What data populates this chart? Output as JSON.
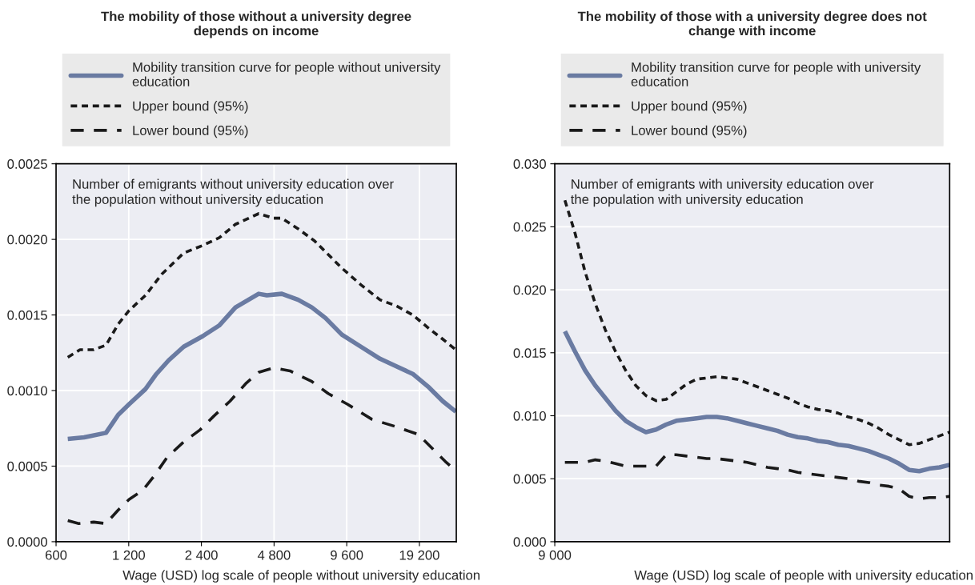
{
  "chart_data": [
    {
      "type": "line",
      "title": "The mobility of those without a university degree\ndepends on income",
      "xlabel": "Wage (USD) log scale of people without university education",
      "log": "x",
      "grid": true,
      "legend": "top",
      "annotations": [
        "Number of emigrants without university education over\nthe population without university education"
      ],
      "xlim": [
        600,
        27300
      ],
      "xticks": [
        600,
        {
          "value": 1200,
          "label": "1 200"
        },
        {
          "value": 2400,
          "label": "2 400"
        },
        {
          "value": 4800,
          "label": "4 800"
        },
        {
          "value": 9600,
          "label": "9 600"
        },
        {
          "value": 19200,
          "label": "19 200"
        }
      ],
      "ylim": [
        0,
        0.0025
      ],
      "yticks": [
        {
          "value": 0,
          "label": "0.0000"
        },
        {
          "value": 0.0005,
          "label": "0.0005"
        },
        {
          "value": 0.001,
          "label": "0.0010"
        },
        {
          "value": 0.0015,
          "label": "0.0015"
        },
        {
          "value": 0.002,
          "label": "0.0020"
        },
        {
          "value": 0.0025,
          "label": "0.0025"
        }
      ],
      "series": [
        {
          "name": "Mobility transition curve for people without university\neducation",
          "color": "#6a7ba2",
          "line_style": "solid",
          "x": [
            671,
            784,
            966,
            1086,
            1205,
            1408,
            1563,
            1756,
            2027,
            2432,
            2842,
            3322,
            4144,
            4482,
            5169,
            6042,
            6882,
            7837,
            9161,
            10990,
            13188,
            15413,
            18017,
            21054,
            23983,
            27170
          ],
          "values": [
            0.00068,
            0.00069,
            0.00072,
            0.00084,
            0.00091,
            0.00101,
            0.00111,
            0.0012,
            0.00129,
            0.00136,
            0.00143,
            0.00155,
            0.00164,
            0.00163,
            0.00164,
            0.0016,
            0.00155,
            0.00148,
            0.00137,
            0.00129,
            0.00121,
            0.00116,
            0.00111,
            0.00102,
            0.00093,
            0.00086
          ]
        },
        {
          "name": "Upper bound (95%)",
          "color": "#1a1a1a",
          "line_style": "dotted",
          "x": [
            671,
            754,
            859,
            966,
            1086,
            1205,
            1408,
            1646,
            2027,
            2432,
            2842,
            3322,
            4144,
            4781,
            5169,
            6042,
            7062,
            8045,
            9161,
            10990,
            13188,
            15413,
            18017,
            21054,
            23983,
            27170
          ],
          "values": [
            0.00122,
            0.00127,
            0.00127,
            0.0013,
            0.00144,
            0.00153,
            0.00163,
            0.00177,
            0.00191,
            0.00196,
            0.00201,
            0.0021,
            0.00217,
            0.00214,
            0.00214,
            0.00207,
            0.00199,
            0.0019,
            0.00181,
            0.0017,
            0.0016,
            0.00156,
            0.0015,
            0.00141,
            0.00134,
            0.00127
          ]
        },
        {
          "name": "Lower bound (95%)",
          "color": "#1a1a1a",
          "line_style": "dashed",
          "x": [
            671,
            745,
            859,
            966,
            1086,
            1205,
            1372,
            1522,
            1734,
            2027,
            2369,
            2698,
            3154,
            3686,
            4144,
            4781,
            5590,
            6882,
            8045,
            9654,
            12193,
            15413,
            18978,
            21613,
            24612,
            27170
          ],
          "values": [
            0.00014,
            0.00012,
            0.00013,
            0.00012,
            0.00021,
            0.00028,
            0.00034,
            0.00043,
            0.00056,
            0.00066,
            0.00074,
            0.00083,
            0.00093,
            0.00105,
            0.00112,
            0.00115,
            0.00113,
            0.00106,
            0.00098,
            0.00091,
            0.00081,
            0.00076,
            0.00071,
            0.00062,
            0.00053,
            0.00047
          ]
        }
      ]
    },
    {
      "type": "line",
      "title": "The mobility of those with a university degree does not\nchange with income",
      "xlabel": "Wage (USD) log scale of people with university education",
      "grid": "y",
      "legend": "top",
      "annotations": [
        "Number of emigrants with university education over\nthe population with university education"
      ],
      "categories": [
        "9 000",
        null,
        null,
        null,
        null,
        null,
        null,
        null,
        null,
        null,
        null,
        null,
        null,
        null,
        null,
        null,
        null,
        null,
        null,
        null,
        null,
        null,
        null,
        null,
        null,
        null,
        null,
        null,
        null,
        null,
        null,
        null,
        null,
        null,
        null,
        null,
        null,
        null,
        null,
        null
      ],
      "ylim": [
        0,
        0.03
      ],
      "yticks": [
        {
          "value": 0,
          "label": "0.000"
        },
        {
          "value": 0.005,
          "label": "0.005"
        },
        {
          "value": 0.01,
          "label": "0.010"
        },
        {
          "value": 0.015,
          "label": "0.015"
        },
        {
          "value": 0.02,
          "label": "0.020"
        },
        {
          "value": 0.025,
          "label": "0.025"
        },
        {
          "value": 0.03,
          "label": "0.030"
        }
      ],
      "series": [
        {
          "name": "Mobility transition curve for people with university\neducation",
          "color": "#6a7ba2",
          "line_style": "solid",
          "values": [
            null,
            0.0167,
            0.0151,
            0.0136,
            0.0124,
            0.0114,
            0.0104,
            0.0096,
            0.0091,
            0.0087,
            0.0089,
            0.0093,
            0.0096,
            0.0097,
            0.0098,
            0.0099,
            0.0099,
            0.0098,
            0.0096,
            0.0094,
            0.0092,
            0.009,
            0.0088,
            0.0085,
            0.0083,
            0.0082,
            0.008,
            0.0079,
            0.0077,
            0.0076,
            0.0074,
            0.0072,
            0.0069,
            0.0066,
            0.0062,
            0.0057,
            0.0056,
            0.0058,
            0.0059,
            0.0061
          ]
        },
        {
          "name": "Upper bound (95%)",
          "color": "#1a1a1a",
          "line_style": "dotted",
          "values": [
            null,
            0.0271,
            0.0245,
            0.0214,
            0.0189,
            0.0168,
            0.0151,
            0.0136,
            0.0124,
            0.0116,
            0.0112,
            0.0113,
            0.0119,
            0.0125,
            0.0129,
            0.013,
            0.0131,
            0.013,
            0.0129,
            0.0126,
            0.0123,
            0.012,
            0.0117,
            0.0114,
            0.011,
            0.0107,
            0.0105,
            0.0104,
            0.0102,
            0.0099,
            0.0097,
            0.0094,
            0.009,
            0.0085,
            0.0081,
            0.0077,
            0.0078,
            0.0081,
            0.0084,
            0.0087
          ]
        },
        {
          "name": "Lower bound (95%)",
          "color": "#1a1a1a",
          "line_style": "dashed",
          "values": [
            null,
            0.0063,
            0.0063,
            0.0063,
            0.0065,
            0.0064,
            0.0062,
            0.006,
            0.006,
            0.006,
            0.006,
            0.0069,
            0.0069,
            0.0068,
            0.0067,
            0.0066,
            0.0066,
            0.0065,
            0.0064,
            0.0063,
            0.0061,
            0.0059,
            0.0058,
            0.0057,
            0.0055,
            0.0054,
            0.0053,
            0.0052,
            0.0051,
            0.005,
            0.0048,
            0.0047,
            0.0045,
            0.0044,
            0.0042,
            0.0036,
            0.0034,
            0.0035,
            0.0035,
            0.0036
          ]
        }
      ]
    }
  ]
}
